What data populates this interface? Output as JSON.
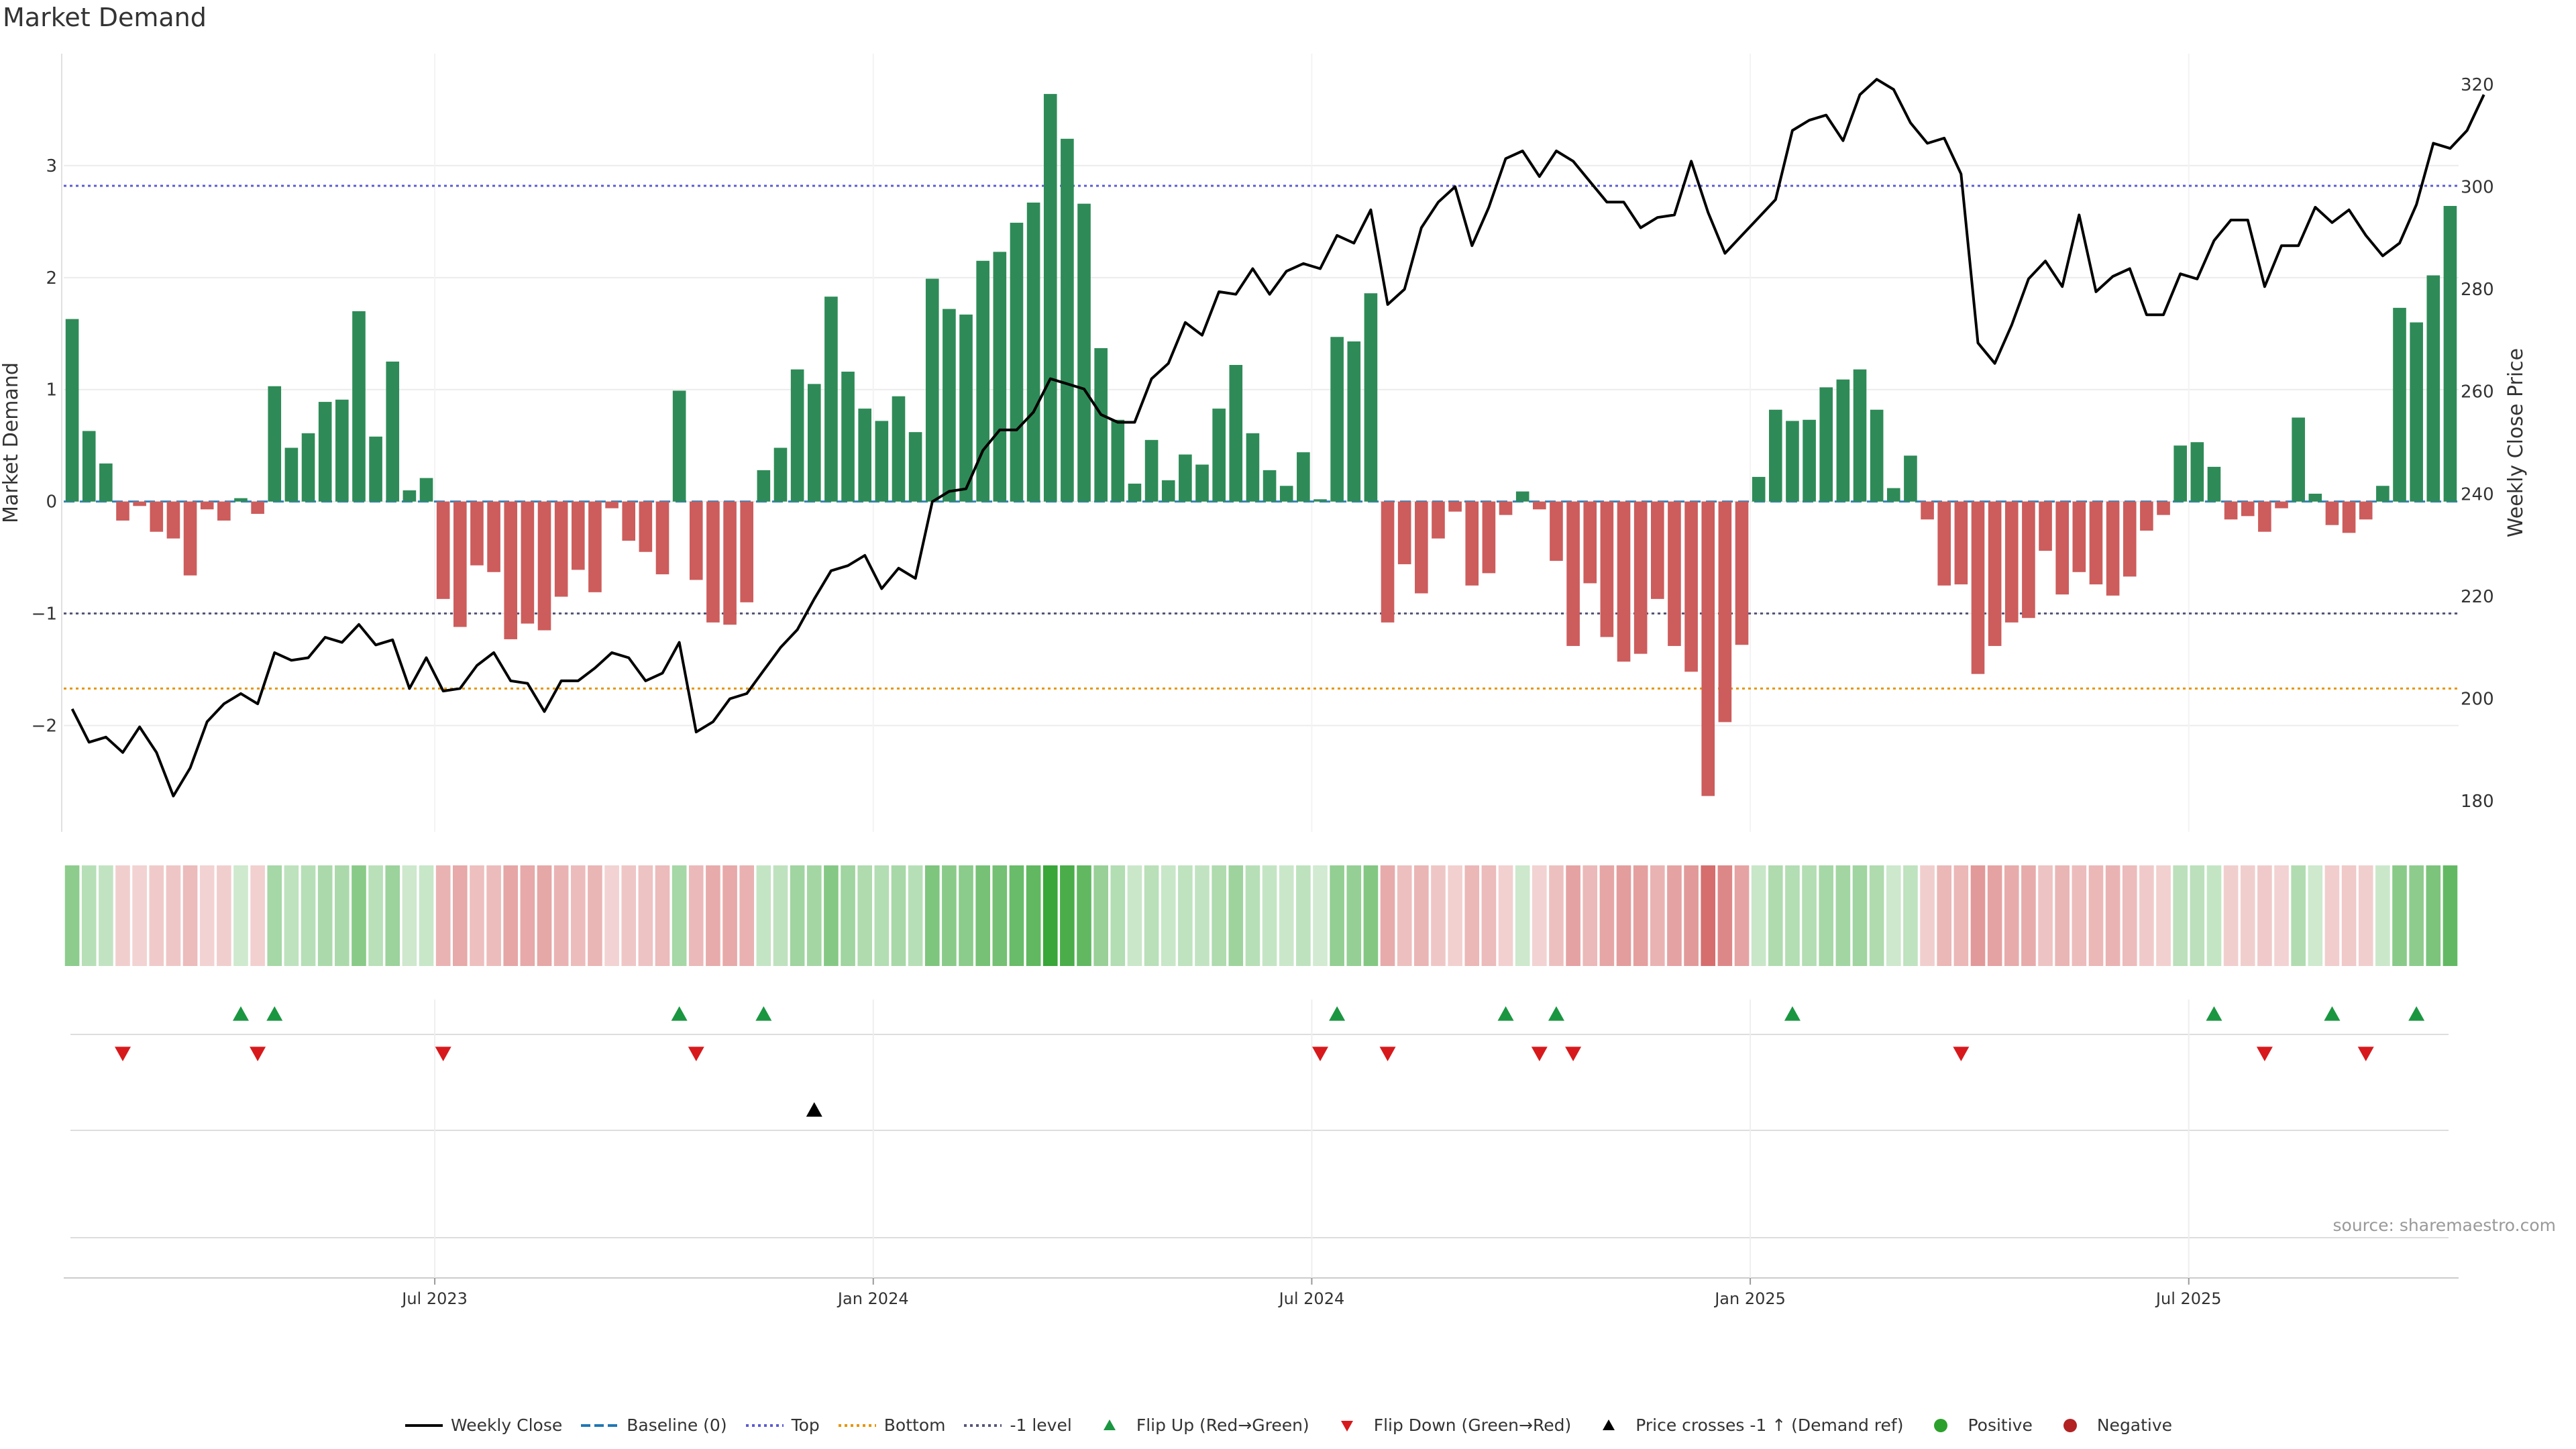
{
  "title": "Market Demand",
  "source": "source: sharemaestro.com",
  "colors": {
    "positive": "#2e8b57",
    "negative": "#cd5c5c",
    "flip_up": "#1a9641",
    "flip_down": "#d7191c",
    "price_line": "#000000",
    "top_line": "#5b5bd6",
    "bottom_line": "#e69500",
    "minus1_line": "#555577",
    "baseline": "#1f77b4"
  },
  "chart_data": {
    "type": "bar",
    "title": "Market Demand",
    "ylabel": "Market Demand",
    "y2label": "Weekly Close Price",
    "ylim": [
      -2.95,
      4.0
    ],
    "y2lim": [
      174,
      326
    ],
    "yticks": [
      3,
      2,
      1,
      0,
      -1,
      -2
    ],
    "ytick_labels": [
      "3",
      "2",
      "1",
      "0",
      "−1",
      "−2"
    ],
    "y2ticks": [
      320,
      300,
      280,
      260,
      240,
      220,
      200,
      180
    ],
    "ytop": 2.82,
    "ybottom": -1.67,
    "yminus1": -1.0,
    "x_ticks": [
      {
        "label": "Jul 2023",
        "index": 22
      },
      {
        "label": "Jan 2024",
        "index": 48
      },
      {
        "label": "Jul 2024",
        "index": 74
      },
      {
        "label": "Jan 2025",
        "index": 100
      },
      {
        "label": "Jul 2025",
        "index": 126
      }
    ],
    "demand": [
      1.63,
      0.63,
      0.34,
      -0.17,
      -0.04,
      -0.27,
      -0.33,
      -0.66,
      -0.07,
      -0.17,
      0.03,
      -0.11,
      1.03,
      0.48,
      0.61,
      0.89,
      0.91,
      1.7,
      0.58,
      1.25,
      0.1,
      0.21,
      -0.87,
      -1.12,
      -0.57,
      -0.63,
      -1.23,
      -1.09,
      -1.15,
      -0.85,
      -0.61,
      -0.81,
      -0.06,
      -0.35,
      -0.45,
      -0.65,
      0.99,
      -0.7,
      -1.08,
      -1.1,
      -0.9,
      0.28,
      0.48,
      1.18,
      1.05,
      1.83,
      1.16,
      0.83,
      0.72,
      0.94,
      0.62,
      1.99,
      1.72,
      1.67,
      2.15,
      2.23,
      2.49,
      2.67,
      3.64,
      3.24,
      2.66,
      1.37,
      0.73,
      0.16,
      0.55,
      0.19,
      0.42,
      0.33,
      0.83,
      1.22,
      0.61,
      0.28,
      0.14,
      0.44,
      0.02,
      1.47,
      1.43,
      1.86,
      -1.08,
      -0.56,
      -0.82,
      -0.33,
      -0.09,
      -0.75,
      -0.64,
      -0.12,
      0.09,
      -0.07,
      -0.53,
      -1.29,
      -0.73,
      -1.21,
      -1.43,
      -1.36,
      -0.87,
      -1.29,
      -1.52,
      -2.63,
      -1.97,
      -1.28,
      0.22,
      0.82,
      0.72,
      0.73,
      1.02,
      1.09,
      1.18,
      0.82,
      0.12,
      0.41,
      -0.16,
      -0.75,
      -0.74,
      -1.54,
      -1.29,
      -1.08,
      -1.04,
      -0.44,
      -0.83,
      -0.63,
      -0.74,
      -0.84,
      -0.67,
      -0.26,
      -0.12,
      0.5,
      0.53,
      0.31,
      -0.16,
      -0.13,
      -0.27,
      -0.06,
      0.75,
      0.07,
      -0.21,
      -0.28,
      -0.16,
      0.14,
      1.73,
      1.6,
      2.02,
      2.64
    ],
    "price": [
      198.0,
      191.5,
      192.5,
      189.5,
      194.5,
      189.5,
      181.0,
      186.5,
      195.5,
      199.0,
      201.0,
      199.0,
      209.0,
      207.5,
      208.0,
      212.0,
      211.0,
      214.5,
      210.5,
      211.5,
      202.0,
      208.0,
      201.5,
      202.0,
      206.5,
      209.0,
      203.5,
      203.0,
      197.5,
      203.5,
      203.5,
      206.0,
      209.0,
      208.0,
      203.5,
      205.0,
      211.0,
      193.5,
      195.5,
      200.0,
      201.0,
      205.5,
      210.0,
      213.5,
      219.5,
      225.0,
      226.0,
      228.0,
      221.5,
      225.5,
      223.5,
      238.5,
      240.5,
      241.0,
      248.5,
      252.5,
      252.5,
      256.0,
      262.5,
      261.5,
      260.5,
      255.5,
      254.0,
      254.0,
      262.5,
      265.5,
      273.5,
      271.0,
      279.5,
      279.0,
      284.0,
      279.0,
      283.5,
      285.0,
      284.0,
      290.5,
      289.0,
      295.5,
      277.0,
      280.0,
      292.0,
      297.0,
      300.0,
      288.5,
      296.0,
      305.5,
      307.0,
      302.0,
      307.0,
      305.0,
      301.0,
      297.0,
      297.0,
      292.0,
      294.0,
      294.5,
      305.0,
      295.0,
      287.0,
      290.5,
      294.0,
      297.5,
      311.0,
      313.0,
      314.0,
      309.0,
      318.0,
      321.0,
      319.0,
      312.5,
      308.5,
      309.5,
      302.5,
      269.5,
      265.5,
      273.0,
      282.0,
      285.5,
      280.5,
      294.5,
      279.5,
      282.5,
      284.0,
      275.0,
      275.0,
      283.0,
      282.0,
      289.5,
      293.5,
      293.5,
      280.5,
      288.5,
      288.5,
      296.0,
      293.0,
      295.5,
      290.5,
      286.5,
      289.0,
      296.5,
      308.5,
      307.5,
      311.0,
      318.0
    ],
    "flip_up_indices": [
      10,
      12,
      36,
      41,
      75,
      85,
      88,
      102,
      127,
      134,
      139
    ],
    "flip_down_indices": [
      3,
      11,
      22,
      37,
      74,
      78,
      87,
      89,
      112,
      130,
      136
    ],
    "price_cross_indices": [
      44
    ]
  },
  "legend": [
    {
      "label": "Weekly Close",
      "icon": "solid-line-icon",
      "color": "#000000"
    },
    {
      "label": "Baseline (0)",
      "icon": "dashed-line-icon",
      "color": "#1f77b4"
    },
    {
      "label": "Top",
      "icon": "dotted-line-icon",
      "color": "#5b5bd6"
    },
    {
      "label": "Bottom",
      "icon": "dotted-line-icon",
      "color": "#e69500"
    },
    {
      "label": "-1 level",
      "icon": "dotted-line-icon",
      "color": "#555577"
    },
    {
      "label": "Flip Up (Red→Green)",
      "icon": "triangle-up-icon",
      "color": "#1a9641"
    },
    {
      "label": "Flip Down (Green→Red)",
      "icon": "triangle-down-icon",
      "color": "#d7191c"
    },
    {
      "label": "Price crosses -1 ↑ (Demand ref)",
      "icon": "triangle-up-icon",
      "color": "#000000"
    },
    {
      "label": "Positive",
      "icon": "circle-icon",
      "color": "#2ca02c"
    },
    {
      "label": "Negative",
      "icon": "circle-icon",
      "color": "#b22222"
    }
  ]
}
